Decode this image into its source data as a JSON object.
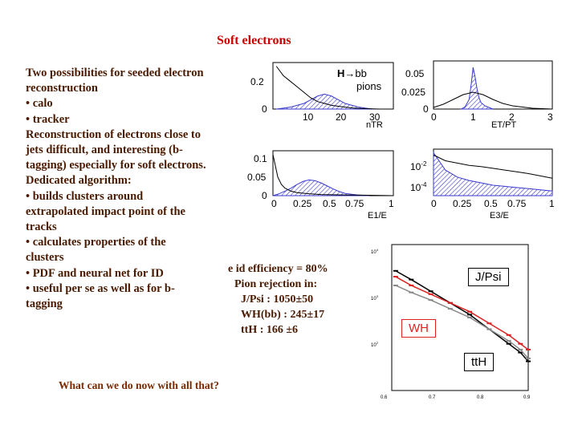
{
  "title": "Soft electrons",
  "body_lines": [
    "Two possibilities for seeded electron",
    "reconstruction",
    "• calo",
    "• tracker",
    "Reconstruction of electrons close to",
    "jets difficult, and interesting (b-",
    "tagging) especially for soft electrons.",
    "Dedicated algorithm:",
    "• builds clusters around",
    "extrapolated impact point of the",
    "tracks",
    "• calculates properties of  the",
    "clusters",
    "• PDF and neural net for ID",
    "• useful per se as well as for b-",
    "tagging"
  ],
  "efficiency": {
    "line1": "e id efficiency = 80%",
    "line2": "Pion rejection in:",
    "line3": "J/Psi     : 1050±50",
    "line4": "WH(bb)  : 245±17",
    "line5": "ttH       : 166 ±6"
  },
  "question": "What can we do now with all that?",
  "annotations": {
    "hbb_h": "H",
    "hbb_bb": "bb",
    "pions": "pions"
  },
  "rejection_labels": {
    "jpsi": "J/Psi",
    "wh": "WH",
    "tth": "ttH"
  },
  "colors": {
    "title": "#cc0000",
    "text": "#4a1a00",
    "hist_fill": "#3a3acc",
    "red_curve": "#dd2222"
  },
  "chart_data": [
    {
      "type": "area",
      "panel": "ntr",
      "xlabel": "nTR",
      "xticks": [
        "10",
        "20",
        "30"
      ],
      "yticks": [
        "0.2",
        "0"
      ],
      "xlim": [
        0,
        35
      ],
      "ylim": [
        0,
        0.25
      ],
      "series": [
        {
          "kind": "filled",
          "x": [
            1,
            3,
            5,
            7,
            9,
            11,
            13,
            15,
            17,
            19,
            21,
            23,
            25,
            27,
            29,
            31
          ],
          "values": [
            0,
            0.005,
            0.01,
            0.02,
            0.03,
            0.05,
            0.07,
            0.08,
            0.07,
            0.05,
            0.03,
            0.02,
            0.01,
            0.005,
            0,
            0
          ]
        },
        {
          "kind": "line",
          "x": [
            1,
            3,
            5,
            7,
            9,
            11,
            13,
            15,
            17,
            19,
            21,
            23,
            25,
            27,
            29,
            31
          ],
          "values": [
            0.23,
            0.18,
            0.15,
            0.12,
            0.09,
            0.06,
            0.04,
            0.03,
            0.02,
            0.015,
            0.01,
            0.006,
            0.004,
            0.002,
            0.001,
            0
          ]
        }
      ]
    },
    {
      "type": "area",
      "panel": "et_pt",
      "xlabel": "ET/PT",
      "xticks": [
        "0",
        "1",
        "2",
        "3"
      ],
      "yticks": [
        "0.05",
        "0.025",
        "0"
      ],
      "xlim": [
        0,
        3
      ],
      "ylim": [
        0,
        0.06
      ],
      "series": [
        {
          "kind": "filled",
          "x": [
            0.7,
            0.8,
            0.9,
            0.95,
            1.0,
            1.05,
            1.1,
            1.15,
            1.2,
            1.3,
            1.4,
            1.5
          ],
          "values": [
            0,
            0.003,
            0.012,
            0.03,
            0.052,
            0.04,
            0.025,
            0.014,
            0.008,
            0.004,
            0.002,
            0
          ]
        },
        {
          "kind": "line",
          "x": [
            0,
            0.25,
            0.5,
            0.75,
            1.0,
            1.25,
            1.5,
            1.75,
            2.0,
            2.5,
            3.0
          ],
          "values": [
            0.002,
            0.006,
            0.012,
            0.018,
            0.021,
            0.018,
            0.012,
            0.007,
            0.004,
            0.001,
            0
          ]
        }
      ]
    },
    {
      "type": "area",
      "panel": "e1_e",
      "xlabel": "E1/E",
      "xticks": [
        "0",
        "0.25",
        "0.5",
        "0.75",
        "1"
      ],
      "yticks": [
        "0.1",
        "0.05",
        "0"
      ],
      "xlim": [
        0,
        1
      ],
      "ylim": [
        0,
        0.12
      ],
      "series": [
        {
          "kind": "filled",
          "x": [
            0,
            0.05,
            0.1,
            0.15,
            0.2,
            0.25,
            0.3,
            0.35,
            0.4,
            0.45,
            0.5,
            0.55,
            0.6,
            0.7,
            0.8
          ],
          "values": [
            0,
            0.005,
            0.012,
            0.02,
            0.03,
            0.038,
            0.042,
            0.04,
            0.034,
            0.026,
            0.018,
            0.011,
            0.006,
            0.002,
            0
          ]
        },
        {
          "kind": "line",
          "x": [
            0,
            0.02,
            0.04,
            0.07,
            0.1,
            0.15,
            0.2,
            0.3,
            0.4,
            0.6,
            0.8,
            1.0
          ],
          "values": [
            0.11,
            0.08,
            0.05,
            0.03,
            0.02,
            0.012,
            0.008,
            0.005,
            0.003,
            0.002,
            0.001,
            0
          ]
        }
      ]
    },
    {
      "type": "area",
      "panel": "e3_e",
      "xlabel": "E3/E",
      "xticks": [
        "0",
        "0.25",
        "0.5",
        "0.75",
        "1"
      ],
      "yticks": [
        "10^-2",
        "10^-4"
      ],
      "xlim": [
        0,
        1
      ],
      "ylim": [
        -5,
        -1
      ],
      "yscale": "log",
      "series": [
        {
          "kind": "filled",
          "x": [
            0,
            0.1,
            0.2,
            0.3,
            0.4,
            0.5,
            0.6,
            0.7,
            0.8,
            0.9,
            1.0
          ],
          "values": [
            -1.3,
            -2.8,
            -3.4,
            -3.7,
            -3.9,
            -4.1,
            -4.2,
            -4.3,
            -4.4,
            -4.5,
            -4.6
          ]
        },
        {
          "kind": "line",
          "x": [
            0,
            0.1,
            0.2,
            0.3,
            0.4,
            0.5,
            0.6,
            0.7,
            0.8,
            0.9,
            1.0
          ],
          "values": [
            -1.5,
            -2.0,
            -2.2,
            -2.4,
            -2.5,
            -2.65,
            -2.8,
            -2.95,
            -3.1,
            -3.3,
            -3.5
          ]
        }
      ]
    },
    {
      "type": "scatter",
      "panel": "rejection",
      "xticks": [
        "0.6",
        "0.7",
        "0.8",
        "0.9"
      ],
      "yticks": [
        "10^4",
        "10^3",
        "10^2"
      ],
      "xlim": [
        0.55,
        0.9
      ],
      "ylim": [
        1.5,
        4
      ],
      "yscale": "log",
      "series": [
        {
          "color": "#000000",
          "x": [
            0.56,
            0.6,
            0.65,
            0.7,
            0.75,
            0.8,
            0.85,
            0.88,
            0.9
          ],
          "values": [
            3.55,
            3.4,
            3.2,
            3.0,
            2.8,
            2.55,
            2.3,
            2.15,
            2.0
          ]
        },
        {
          "color": "#dd2222",
          "x": [
            0.56,
            0.6,
            0.65,
            0.7,
            0.75,
            0.8,
            0.85,
            0.88,
            0.9
          ],
          "values": [
            3.45,
            3.3,
            3.15,
            3.0,
            2.85,
            2.65,
            2.45,
            2.3,
            2.2
          ]
        },
        {
          "color": "#888888",
          "x": [
            0.56,
            0.6,
            0.65,
            0.7,
            0.75,
            0.8,
            0.85,
            0.88,
            0.9
          ],
          "values": [
            3.3,
            3.18,
            3.05,
            2.9,
            2.75,
            2.55,
            2.35,
            2.2,
            2.05
          ]
        }
      ]
    }
  ]
}
